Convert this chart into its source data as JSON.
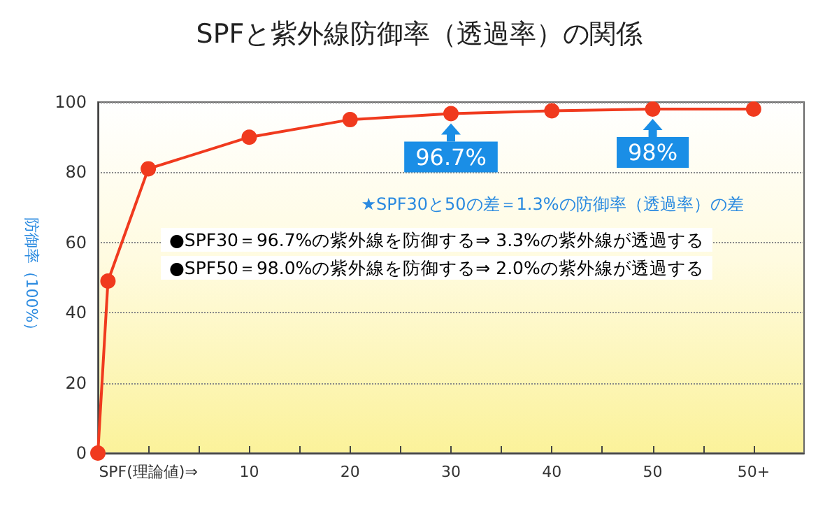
{
  "chart_data": {
    "type": "line",
    "title": "SPFと紫外線防御率（透過率）の関係",
    "ylabel": "防御率（100%）",
    "x": [
      -5,
      -4,
      0,
      10,
      20,
      30,
      40,
      50,
      60
    ],
    "series": [
      {
        "color": "#f03a1e",
        "values": [
          0,
          49,
          81,
          90,
          95,
          96.7,
          97.5,
          98,
          98
        ]
      }
    ],
    "xlim": [
      -5,
      65
    ],
    "xticks": [
      {
        "value": 0,
        "label": "SPF(理論値)⇒"
      },
      {
        "value": 5,
        "label": null
      },
      10,
      {
        "value": 15,
        "label": null
      },
      20,
      {
        "value": 25,
        "label": null
      },
      30,
      {
        "value": 35,
        "label": null
      },
      40,
      {
        "value": 45,
        "label": null
      },
      50,
      {
        "value": 55,
        "label": null
      },
      {
        "value": 60,
        "label": "50+"
      }
    ],
    "ylim": [
      0,
      100
    ],
    "yticks": [
      0,
      20,
      40,
      60,
      80,
      100
    ],
    "grid": "y",
    "marker": "circle",
    "annotations": [
      {
        "text": "96.7%",
        "x": 30,
        "y": 96.7
      },
      {
        "text": "98%",
        "x": 50,
        "y": 98
      },
      "★SPF30と50の差＝1.3%の防御率（透過率）の差",
      "●SPF30＝96.7%の紫外線を防御する⇒ 3.3%の紫外線が透過する",
      "●SPF50＝98.0%の紫外線を防御する⇒ 2.0%の紫外線が透過する"
    ]
  }
}
